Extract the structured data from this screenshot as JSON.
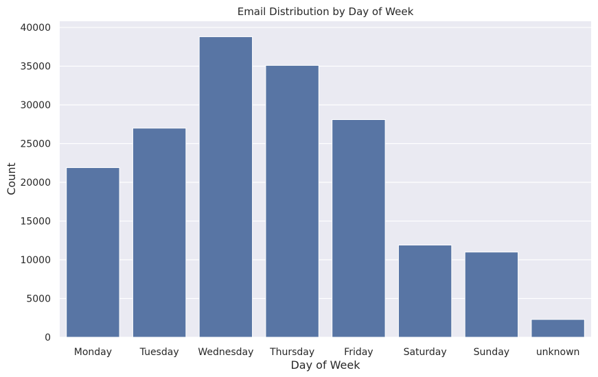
{
  "chart_data": {
    "type": "bar",
    "title": "Email Distribution by Day of Week",
    "xlabel": "Day of Week",
    "ylabel": "Count",
    "categories": [
      "Monday",
      "Tuesday",
      "Wednesday",
      "Thursday",
      "Friday",
      "Saturday",
      "Sunday",
      "unknown"
    ],
    "values": [
      21900,
      27000,
      38800,
      35100,
      28100,
      11900,
      11000,
      2300
    ],
    "ylim": [
      0,
      40800
    ],
    "yticks": [
      0,
      5000,
      10000,
      15000,
      20000,
      25000,
      30000,
      35000,
      40000
    ],
    "grid": true,
    "bar_color": "#5875a4",
    "plot_background": "#eaeaf2",
    "grid_color": "#ffffff"
  }
}
